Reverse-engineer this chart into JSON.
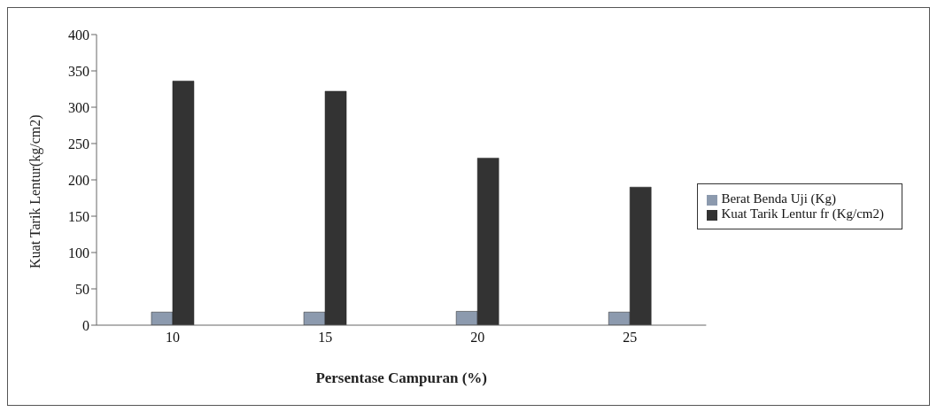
{
  "chart_data": {
    "type": "bar",
    "xlabel": "Persentase Campuran (%)",
    "ylabel": "Kuat Tarik Lentur(kg/cm2)",
    "categories": [
      "10",
      "15",
      "20",
      "25"
    ],
    "series": [
      {
        "name": "Berat Benda Uji (Kg)",
        "color": "#8c9aae",
        "values": [
          18,
          18,
          19,
          18
        ]
      },
      {
        "name": "Kuat Tarik Lentur fr (Kg/cm2)",
        "color": "#333333",
        "values": [
          336,
          322,
          230,
          190
        ]
      }
    ],
    "ylim": [
      0,
      400
    ],
    "yticks": [
      0,
      50,
      100,
      150,
      200,
      250,
      300,
      350,
      400
    ],
    "grid": false,
    "legend": "right"
  }
}
